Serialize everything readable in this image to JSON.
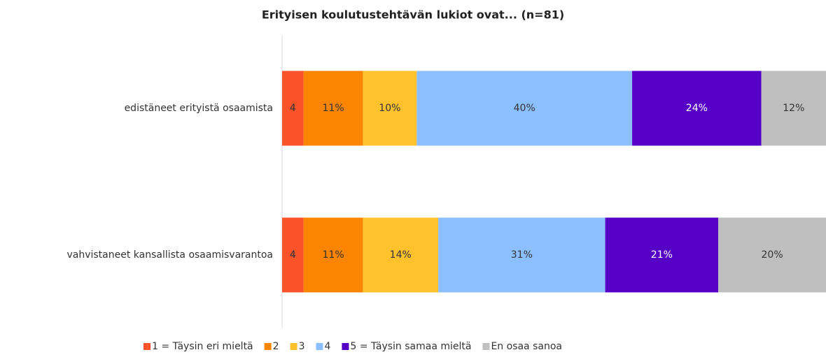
{
  "chart_data": {
    "type": "stacked-bar-horizontal",
    "title": "Erityisen koulutustehtävän lukiot ovat... (n=81)",
    "categories": [
      "edistäneet erityistä osaamista",
      "vahvistaneet kansallista osaamisvarantoa"
    ],
    "series": [
      {
        "name": "1 = Täysin eri mieltä",
        "color": "#fa5229",
        "values": [
          4,
          4
        ],
        "value_labels": [
          "4",
          "4"
        ]
      },
      {
        "name": "2",
        "color": "#fb8500",
        "values": [
          11,
          11
        ],
        "value_labels": [
          "11%",
          "11%"
        ]
      },
      {
        "name": "3",
        "color": "#ffc12c",
        "values": [
          10,
          14
        ],
        "value_labels": [
          "10%",
          "14%"
        ]
      },
      {
        "name": "4",
        "color": "#8cbfff",
        "values": [
          40,
          31
        ],
        "value_labels": [
          "40%",
          "31%"
        ]
      },
      {
        "name": "5 = Täysin samaa mieltä",
        "color": "#5500c4",
        "values": [
          24,
          21
        ],
        "value_labels": [
          "24%",
          "21%"
        ]
      },
      {
        "name": "En osaa sanoa",
        "color": "#bfbfbf",
        "values": [
          12,
          20
        ],
        "value_labels": [
          "12%",
          "20%"
        ]
      }
    ],
    "legend": "bottom"
  }
}
